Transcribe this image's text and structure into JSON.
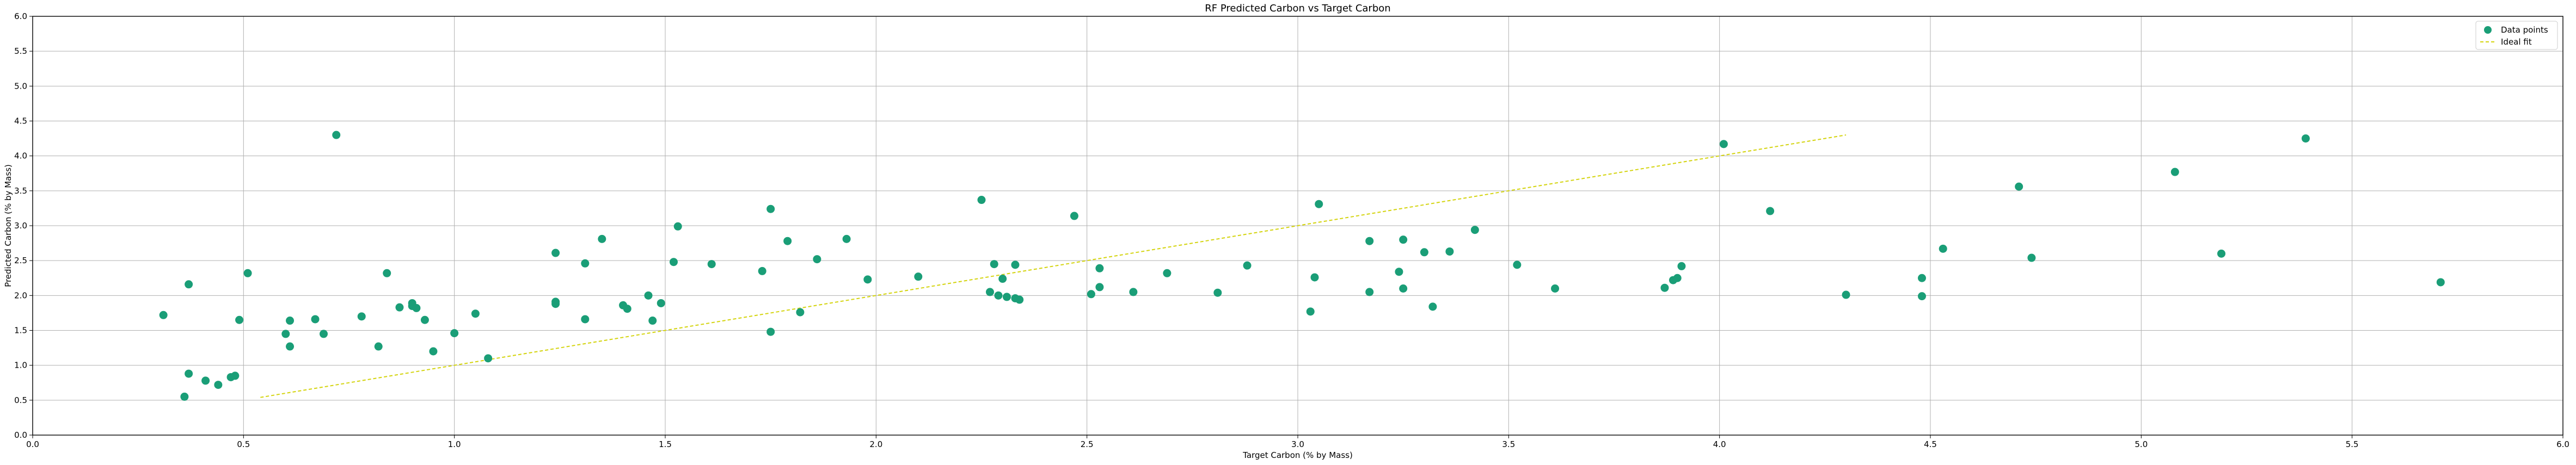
{
  "chart_data": {
    "type": "scatter",
    "title": "RF Predicted Carbon vs Target Carbon",
    "xlabel": "Target Carbon (% by Mass)",
    "ylabel": "Predicted Carbon (% by Mass)",
    "xlim": [
      0.0,
      6.0
    ],
    "ylim": [
      0.0,
      6.0
    ],
    "xticks": [
      "0.0",
      "0.5",
      "1.0",
      "1.5",
      "2.0",
      "2.5",
      "3.0",
      "3.5",
      "4.0",
      "4.5",
      "5.0",
      "5.5",
      "6.0"
    ],
    "yticks": [
      "0.0",
      "0.5",
      "1.0",
      "1.5",
      "2.0",
      "2.5",
      "3.0",
      "3.5",
      "4.0",
      "4.5",
      "5.0",
      "5.5",
      "6.0"
    ],
    "grid": true,
    "legend_position": "top-right",
    "colors": {
      "points": "#1a9e77",
      "ideal_fit": "#d4d40f"
    },
    "series": [
      {
        "name": "Data points",
        "marker": "circle",
        "points": [
          [
            0.31,
            1.72
          ],
          [
            0.37,
            2.16
          ],
          [
            0.36,
            0.55
          ],
          [
            0.37,
            0.88
          ],
          [
            0.41,
            0.78
          ],
          [
            0.44,
            0.72
          ],
          [
            0.47,
            0.83
          ],
          [
            0.48,
            0.85
          ],
          [
            0.49,
            1.65
          ],
          [
            0.51,
            2.32
          ],
          [
            0.6,
            1.45
          ],
          [
            0.61,
            1.27
          ],
          [
            0.61,
            1.64
          ],
          [
            0.67,
            1.66
          ],
          [
            0.69,
            1.45
          ],
          [
            0.72,
            4.3
          ],
          [
            0.78,
            1.7
          ],
          [
            0.82,
            1.27
          ],
          [
            0.84,
            2.32
          ],
          [
            0.87,
            1.83
          ],
          [
            0.9,
            1.85
          ],
          [
            0.9,
            1.89
          ],
          [
            0.91,
            1.82
          ],
          [
            0.93,
            1.65
          ],
          [
            0.95,
            1.2
          ],
          [
            1.0,
            1.46
          ],
          [
            1.05,
            1.74
          ],
          [
            1.08,
            1.1
          ],
          [
            1.24,
            2.61
          ],
          [
            1.24,
            1.91
          ],
          [
            1.24,
            1.88
          ],
          [
            1.31,
            2.46
          ],
          [
            1.31,
            1.66
          ],
          [
            1.35,
            2.81
          ],
          [
            1.4,
            1.86
          ],
          [
            1.41,
            1.81
          ],
          [
            1.46,
            2.0
          ],
          [
            1.47,
            1.64
          ],
          [
            1.49,
            1.89
          ],
          [
            1.52,
            2.48
          ],
          [
            1.53,
            2.99
          ],
          [
            1.61,
            2.45
          ],
          [
            1.73,
            2.35
          ],
          [
            1.75,
            3.24
          ],
          [
            1.75,
            1.48
          ],
          [
            1.79,
            2.78
          ],
          [
            1.82,
            1.76
          ],
          [
            1.86,
            2.52
          ],
          [
            1.93,
            2.81
          ],
          [
            1.98,
            2.23
          ],
          [
            2.1,
            2.27
          ],
          [
            2.25,
            3.37
          ],
          [
            2.27,
            2.05
          ],
          [
            2.28,
            2.45
          ],
          [
            2.29,
            2.0
          ],
          [
            2.3,
            2.24
          ],
          [
            2.31,
            1.98
          ],
          [
            2.33,
            1.96
          ],
          [
            2.33,
            2.44
          ],
          [
            2.34,
            1.94
          ],
          [
            2.47,
            3.14
          ],
          [
            2.51,
            2.02
          ],
          [
            2.53,
            2.12
          ],
          [
            2.53,
            2.39
          ],
          [
            2.61,
            2.05
          ],
          [
            2.69,
            2.32
          ],
          [
            2.81,
            2.04
          ],
          [
            2.88,
            2.43
          ],
          [
            3.03,
            1.77
          ],
          [
            3.04,
            2.26
          ],
          [
            3.05,
            3.31
          ],
          [
            3.17,
            2.78
          ],
          [
            3.17,
            2.05
          ],
          [
            3.24,
            2.34
          ],
          [
            3.25,
            2.8
          ],
          [
            3.25,
            2.1
          ],
          [
            3.3,
            2.62
          ],
          [
            3.32,
            1.84
          ],
          [
            3.36,
            2.63
          ],
          [
            3.42,
            2.94
          ],
          [
            3.52,
            2.44
          ],
          [
            3.61,
            2.1
          ],
          [
            3.87,
            2.11
          ],
          [
            3.89,
            2.22
          ],
          [
            3.9,
            2.25
          ],
          [
            3.91,
            2.42
          ],
          [
            4.01,
            4.17
          ],
          [
            4.12,
            3.21
          ],
          [
            4.3,
            2.01
          ],
          [
            4.48,
            1.99
          ],
          [
            4.48,
            2.25
          ],
          [
            4.53,
            2.67
          ],
          [
            4.71,
            3.56
          ],
          [
            4.74,
            2.54
          ],
          [
            5.08,
            3.77
          ],
          [
            5.19,
            2.6
          ],
          [
            5.39,
            4.25
          ],
          [
            5.71,
            2.19
          ]
        ]
      },
      {
        "name": "Ideal fit",
        "line_style": "dashed",
        "points": [
          [
            0.54,
            0.54
          ],
          [
            4.3,
            4.3
          ]
        ]
      }
    ]
  }
}
